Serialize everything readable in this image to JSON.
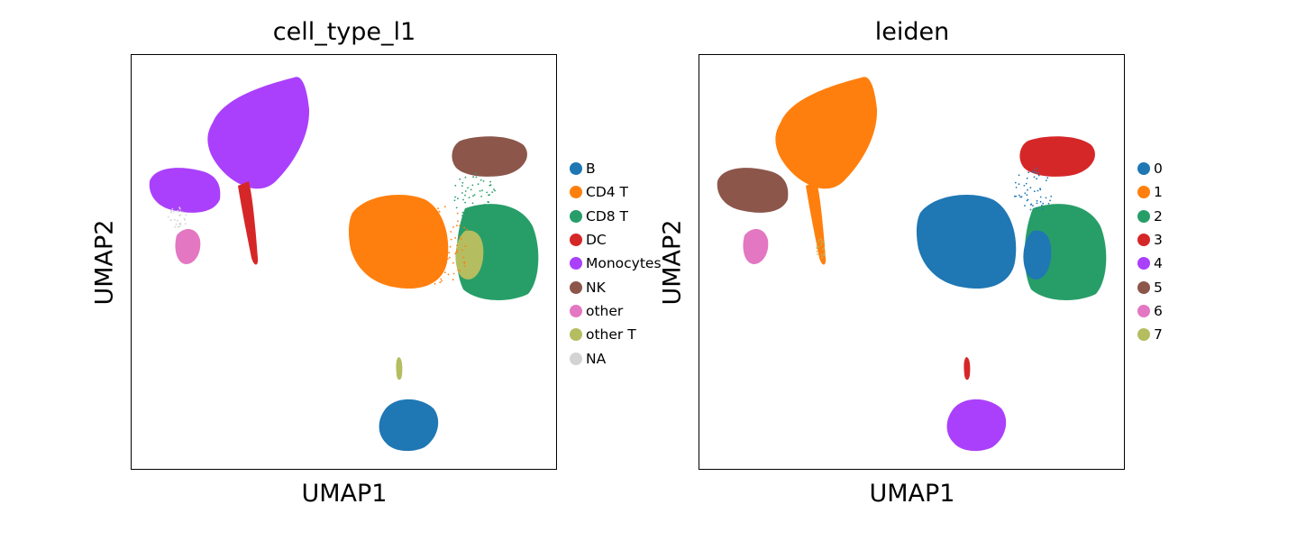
{
  "colors": {
    "c0": "#1f77b4",
    "c1": "#ff7f0e",
    "c2": "#279e68",
    "c3": "#d62728",
    "c4": "#aa40fc",
    "c5": "#8c564b",
    "c6": "#e377c2",
    "c7": "#b5bd61",
    "na": "#d3d3d3"
  },
  "chart_data": [
    {
      "type": "scatter",
      "title": "cell_type_l1",
      "xlabel": "UMAP1",
      "ylabel": "UMAP2",
      "ticks": "none",
      "legend_position": "right",
      "legend": [
        {
          "label": "B",
          "color": "#1f77b4"
        },
        {
          "label": "CD4 T",
          "color": "#ff7f0e"
        },
        {
          "label": "CD8 T",
          "color": "#279e68"
        },
        {
          "label": "DC",
          "color": "#d62728"
        },
        {
          "label": "Monocytes",
          "color": "#aa40fc"
        },
        {
          "label": "NK",
          "color": "#8c564b"
        },
        {
          "label": "other",
          "color": "#e377c2"
        },
        {
          "label": "other T",
          "color": "#b5bd61"
        },
        {
          "label": "NA",
          "color": "#d3d3d3"
        }
      ]
    },
    {
      "type": "scatter",
      "title": "leiden",
      "xlabel": "UMAP1",
      "ylabel": "UMAP2",
      "ticks": "none",
      "legend_position": "right",
      "legend": [
        {
          "label": "0",
          "color": "#1f77b4"
        },
        {
          "label": "1",
          "color": "#ff7f0e"
        },
        {
          "label": "2",
          "color": "#279e68"
        },
        {
          "label": "3",
          "color": "#d62728"
        },
        {
          "label": "4",
          "color": "#aa40fc"
        },
        {
          "label": "5",
          "color": "#8c564b"
        },
        {
          "label": "6",
          "color": "#e377c2"
        },
        {
          "label": "7",
          "color": "#b5bd61"
        }
      ]
    }
  ]
}
